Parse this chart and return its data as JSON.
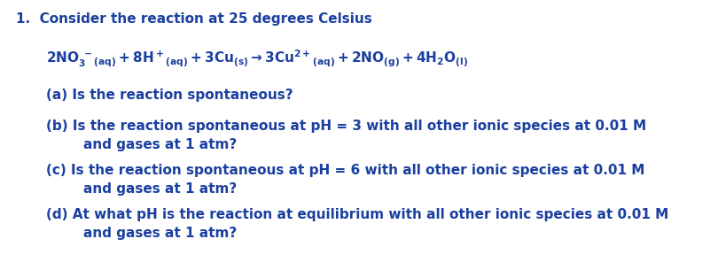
{
  "bg_color": "#ffffff",
  "text_color": "#1a3fa0",
  "figsize": [
    8.1,
    3.05
  ],
  "dpi": 100,
  "font_size": 11.0,
  "font_family": "DejaVu Sans",
  "font_weight": "bold",
  "line1": "1.  Consider the reaction at 25 degrees Celsius",
  "parts": [
    "(a) Is the reaction spontaneous?",
    "(b) Is the reaction spontaneous at pH = 3 with all other ionic species at 0.01 M\n        and gases at 1 atm?",
    "(c) Is the reaction spontaneous at pH = 6 with all other ionic species at 0.01 M\n        and gases at 1 atm?",
    "(d) At what pH is the reaction at equilibrium with all other ionic species at 0.01 M\n        and gases at 1 atm?"
  ]
}
